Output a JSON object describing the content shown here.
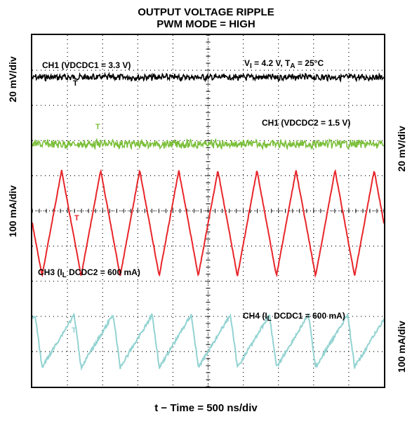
{
  "chart_data": {
    "type": "line",
    "title": "OUTPUT VOLTAGE RIPPLE",
    "subtitle": "PWM MODE = HIGH",
    "xlabel": "t − Time = 500 ns/div",
    "grid": true,
    "x_divisions": 10,
    "y_divisions": 10,
    "left_axis_labels": [
      "20 mV/div",
      "100 mA/div"
    ],
    "right_axis_labels": [
      "20 mV/div",
      "100 mA/div"
    ],
    "conditions": {
      "vi_symbol": "V",
      "vi_sub": "I",
      "vi_value": " = 4.2 V,  T",
      "ta_sub": "A",
      "ta_value": " = 25°C"
    },
    "series": [
      {
        "name": "CH1 (VDCDC1 = 3.3 V)",
        "color": "#000000",
        "waveform": "noise",
        "center_div": 1.2,
        "amplitude_div": 0.08,
        "label_parts": [
          "CH1 (VDCDC1 = 3.3 V)"
        ]
      },
      {
        "name": "CH1 (VDCDC2 = 1.5 V)",
        "color": "#7bbf3a",
        "waveform": "noise",
        "center_div": 3.1,
        "amplitude_div": 0.1,
        "label_parts": [
          "CH1 (VDCDC2 = 1.5 V)"
        ]
      },
      {
        "name": "CH3 (IL DCDC2 = 600 mA)",
        "color": "#e8262b",
        "waveform": "triangle",
        "center_div": 5.35,
        "amplitude_div": 1.5,
        "cycles": 9,
        "label_parts": [
          "CH3 (I",
          "L",
          " DCDC2 = 600 mA)"
        ]
      },
      {
        "name": "CH4 (IL DCDC1 = 600 mA)",
        "color": "#93d3d2",
        "waveform": "sawtooth",
        "center_div": 8.7,
        "amplitude_div": 0.75,
        "cycles": 9,
        "label_parts": [
          "CH4 (I",
          "L",
          " DCDC1 = 600 mA)"
        ]
      }
    ],
    "markers": [
      "T",
      "T",
      "T",
      "T"
    ]
  }
}
